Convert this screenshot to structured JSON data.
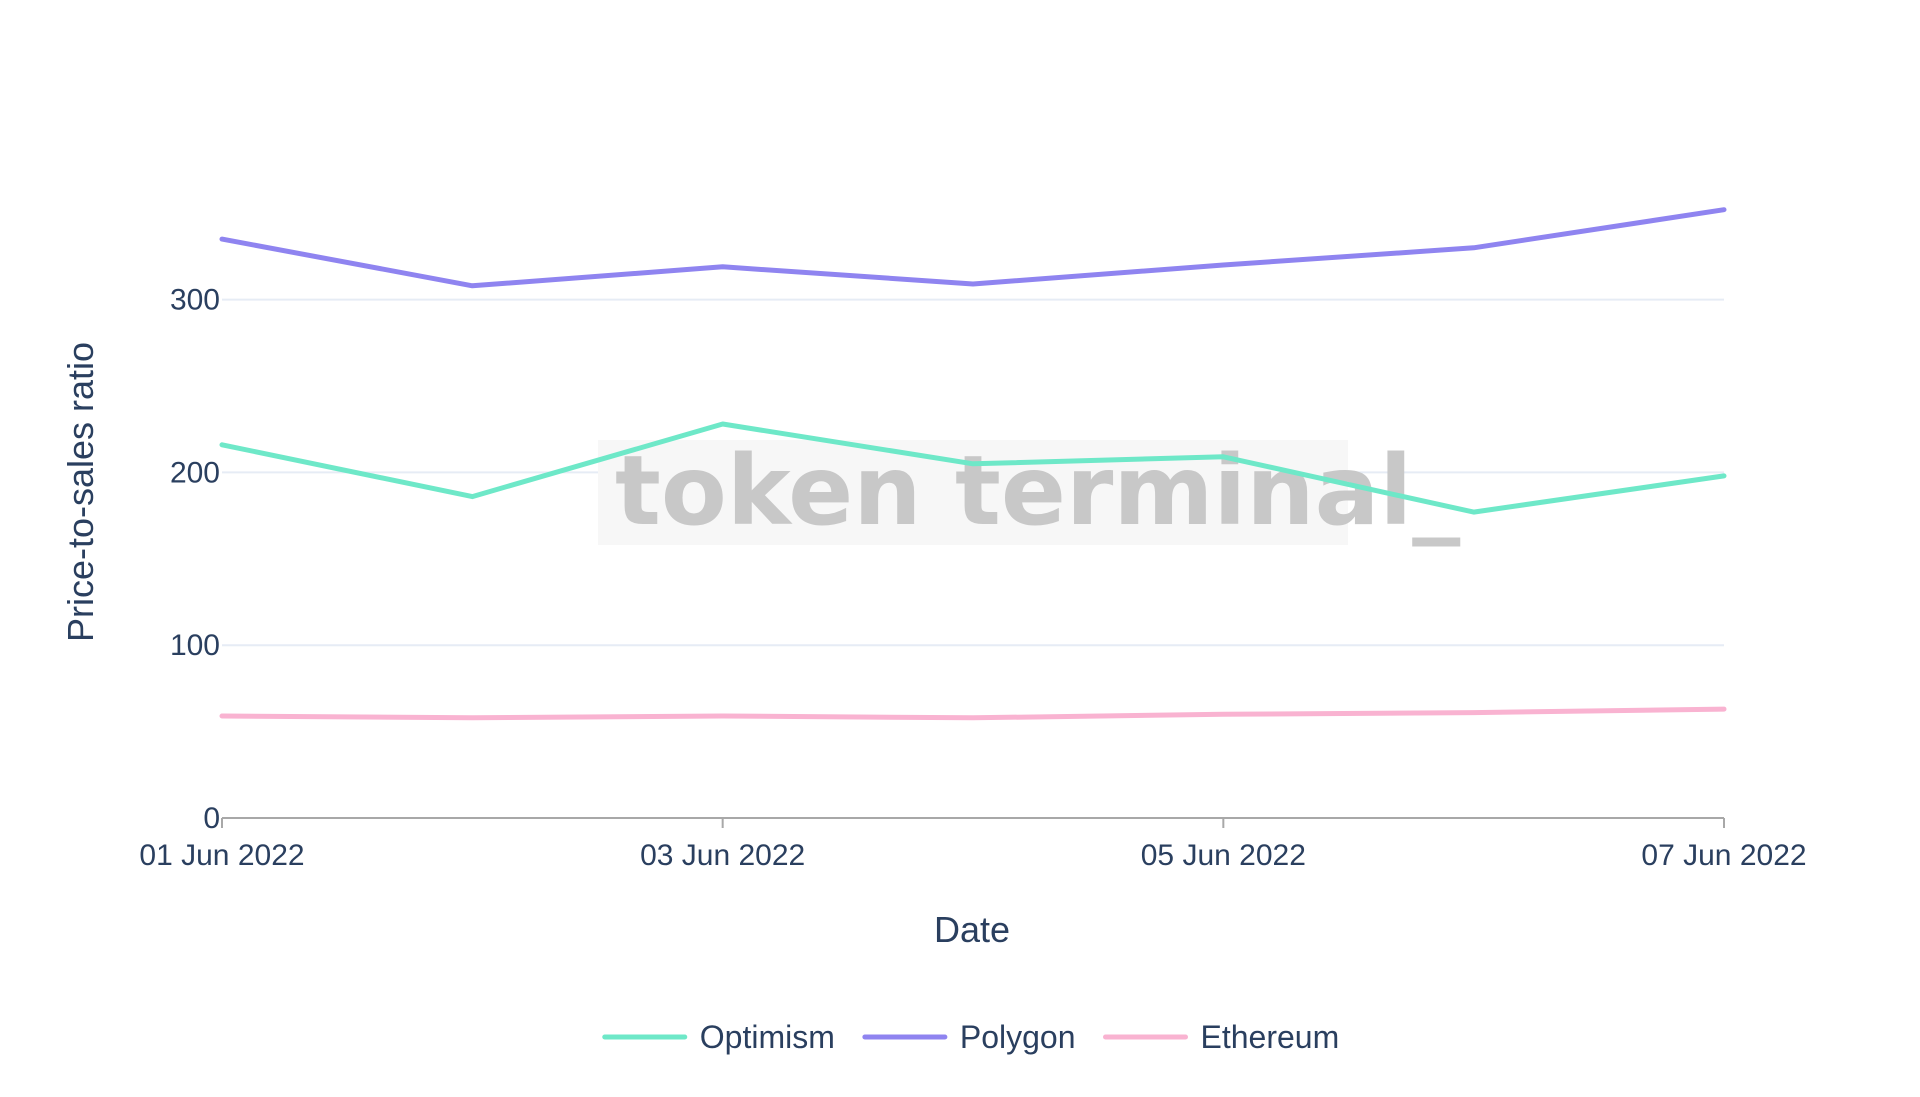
{
  "chart_data": {
    "type": "line",
    "xlabel": "Date",
    "ylabel": "Price-to-sales ratio",
    "x": [
      "01 Jun 2022",
      "02 Jun 2022",
      "03 Jun 2022",
      "04 Jun 2022",
      "05 Jun 2022",
      "06 Jun 2022",
      "07 Jun 2022"
    ],
    "x_tick_labels": [
      "01 Jun 2022",
      "03 Jun 2022",
      "05 Jun 2022",
      "07 Jun 2022"
    ],
    "y_ticks": [
      0,
      100,
      200,
      300
    ],
    "ylim": [
      0,
      375
    ],
    "grid": true,
    "legend_position": "bottom-center",
    "watermark": "token terminal_",
    "series": [
      {
        "name": "Optimism",
        "color": "#6ee8c8",
        "values": [
          216,
          186,
          228,
          205,
          209,
          177,
          198
        ]
      },
      {
        "name": "Polygon",
        "color": "#8f84f0",
        "values": [
          335,
          308,
          319,
          309,
          320,
          330,
          352
        ]
      },
      {
        "name": "Ethereum",
        "color": "#f9b3d1",
        "values": [
          59,
          58,
          59,
          58,
          60,
          61,
          63
        ]
      }
    ]
  }
}
